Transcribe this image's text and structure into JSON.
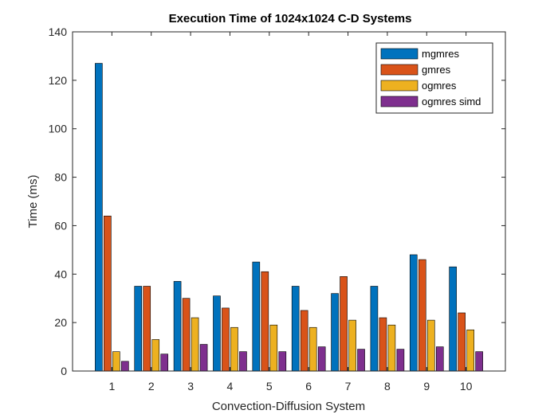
{
  "chart_data": {
    "type": "bar",
    "title": "Execution Time of 1024x1024 C-D Systems",
    "xlabel": "Convection-Diffusion System",
    "ylabel": "Time (ms)",
    "ylim": [
      0,
      140
    ],
    "yticks": [
      0,
      20,
      40,
      60,
      80,
      100,
      120,
      140
    ],
    "categories": [
      "1",
      "2",
      "3",
      "4",
      "5",
      "6",
      "7",
      "8",
      "9",
      "10"
    ],
    "grid": false,
    "legend_position": "top-right",
    "series": [
      {
        "name": "mgmres",
        "color": "#0072BD",
        "values": [
          127,
          35,
          37,
          31,
          45,
          35,
          32,
          35,
          48,
          43
        ]
      },
      {
        "name": "gmres",
        "color": "#D95319",
        "values": [
          64,
          35,
          30,
          26,
          41,
          25,
          39,
          22,
          46,
          24
        ]
      },
      {
        "name": "ogmres",
        "color": "#EDB120",
        "values": [
          8,
          13,
          22,
          18,
          19,
          18,
          21,
          19,
          21,
          17
        ]
      },
      {
        "name": "ogmres simd",
        "color": "#7E2F8E",
        "values": [
          4,
          7,
          11,
          8,
          8,
          10,
          9,
          9,
          10,
          8
        ]
      }
    ]
  }
}
